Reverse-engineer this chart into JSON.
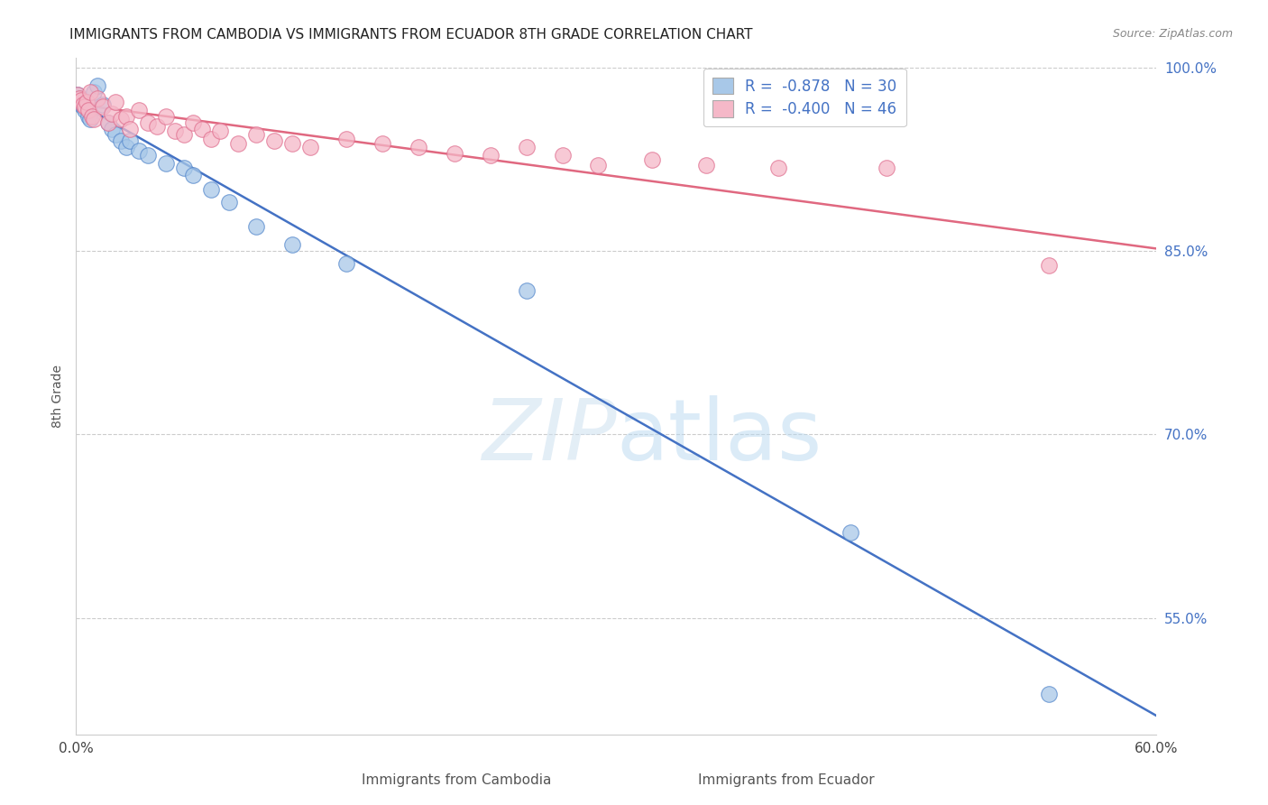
{
  "title": "IMMIGRANTS FROM CAMBODIA VS IMMIGRANTS FROM ECUADOR 8TH GRADE CORRELATION CHART",
  "source": "Source: ZipAtlas.com",
  "ylabel": "8th Grade",
  "label_cambodia": "Immigrants from Cambodia",
  "label_ecuador": "Immigrants from Ecuador",
  "r_cambodia": -0.878,
  "n_cambodia": 30,
  "r_ecuador": -0.4,
  "n_ecuador": 46,
  "color_cambodia_fill": "#a8c8e8",
  "color_ecuador_fill": "#f5b8c8",
  "color_cambodia_edge": "#5588cc",
  "color_ecuador_edge": "#e07090",
  "line_color_cambodia": "#4472c4",
  "line_color_ecuador": "#e06880",
  "xlim": [
    0.0,
    0.6
  ],
  "ylim": [
    0.455,
    1.008
  ],
  "yticks": [
    0.55,
    0.7,
    0.85,
    1.0
  ],
  "ytick_labels": [
    "55.0%",
    "70.0%",
    "85.0%",
    "100.0%"
  ],
  "xtick_positions": [
    0.0,
    0.1,
    0.2,
    0.3,
    0.4,
    0.5,
    0.6
  ],
  "xtick_labels": [
    "0.0%",
    "",
    "",
    "",
    "",
    "",
    "60.0%"
  ],
  "watermark_part1": "ZIP",
  "watermark_part2": "atlas",
  "blue_line_x0": 0.0,
  "blue_line_y0": 0.972,
  "blue_line_x1": 0.6,
  "blue_line_y1": 0.47,
  "pink_line_x0": 0.0,
  "pink_line_y0": 0.97,
  "pink_line_x1": 0.6,
  "pink_line_y1": 0.852,
  "cambodia_x": [
    0.001,
    0.002,
    0.003,
    0.004,
    0.005,
    0.006,
    0.007,
    0.008,
    0.01,
    0.012,
    0.015,
    0.018,
    0.02,
    0.022,
    0.025,
    0.028,
    0.03,
    0.035,
    0.04,
    0.05,
    0.06,
    0.065,
    0.075,
    0.085,
    0.1,
    0.12,
    0.15,
    0.25,
    0.43,
    0.54
  ],
  "cambodia_y": [
    0.978,
    0.975,
    0.97,
    0.968,
    0.965,
    0.972,
    0.96,
    0.958,
    0.98,
    0.985,
    0.97,
    0.955,
    0.95,
    0.945,
    0.94,
    0.935,
    0.94,
    0.932,
    0.928,
    0.922,
    0.918,
    0.912,
    0.9,
    0.89,
    0.87,
    0.855,
    0.84,
    0.818,
    0.62,
    0.488
  ],
  "ecuador_x": [
    0.001,
    0.002,
    0.003,
    0.004,
    0.005,
    0.006,
    0.007,
    0.008,
    0.009,
    0.01,
    0.012,
    0.015,
    0.018,
    0.02,
    0.022,
    0.025,
    0.028,
    0.03,
    0.035,
    0.04,
    0.045,
    0.05,
    0.055,
    0.06,
    0.065,
    0.07,
    0.075,
    0.08,
    0.09,
    0.1,
    0.11,
    0.12,
    0.13,
    0.15,
    0.17,
    0.19,
    0.21,
    0.23,
    0.25,
    0.27,
    0.29,
    0.32,
    0.35,
    0.39,
    0.45,
    0.54
  ],
  "ecuador_y": [
    0.978,
    0.975,
    0.973,
    0.97,
    0.968,
    0.972,
    0.965,
    0.98,
    0.96,
    0.958,
    0.975,
    0.968,
    0.955,
    0.962,
    0.972,
    0.958,
    0.96,
    0.95,
    0.965,
    0.955,
    0.952,
    0.96,
    0.948,
    0.945,
    0.955,
    0.95,
    0.942,
    0.948,
    0.938,
    0.945,
    0.94,
    0.938,
    0.935,
    0.942,
    0.938,
    0.935,
    0.93,
    0.928,
    0.935,
    0.928,
    0.92,
    0.925,
    0.92,
    0.918,
    0.918,
    0.838
  ]
}
